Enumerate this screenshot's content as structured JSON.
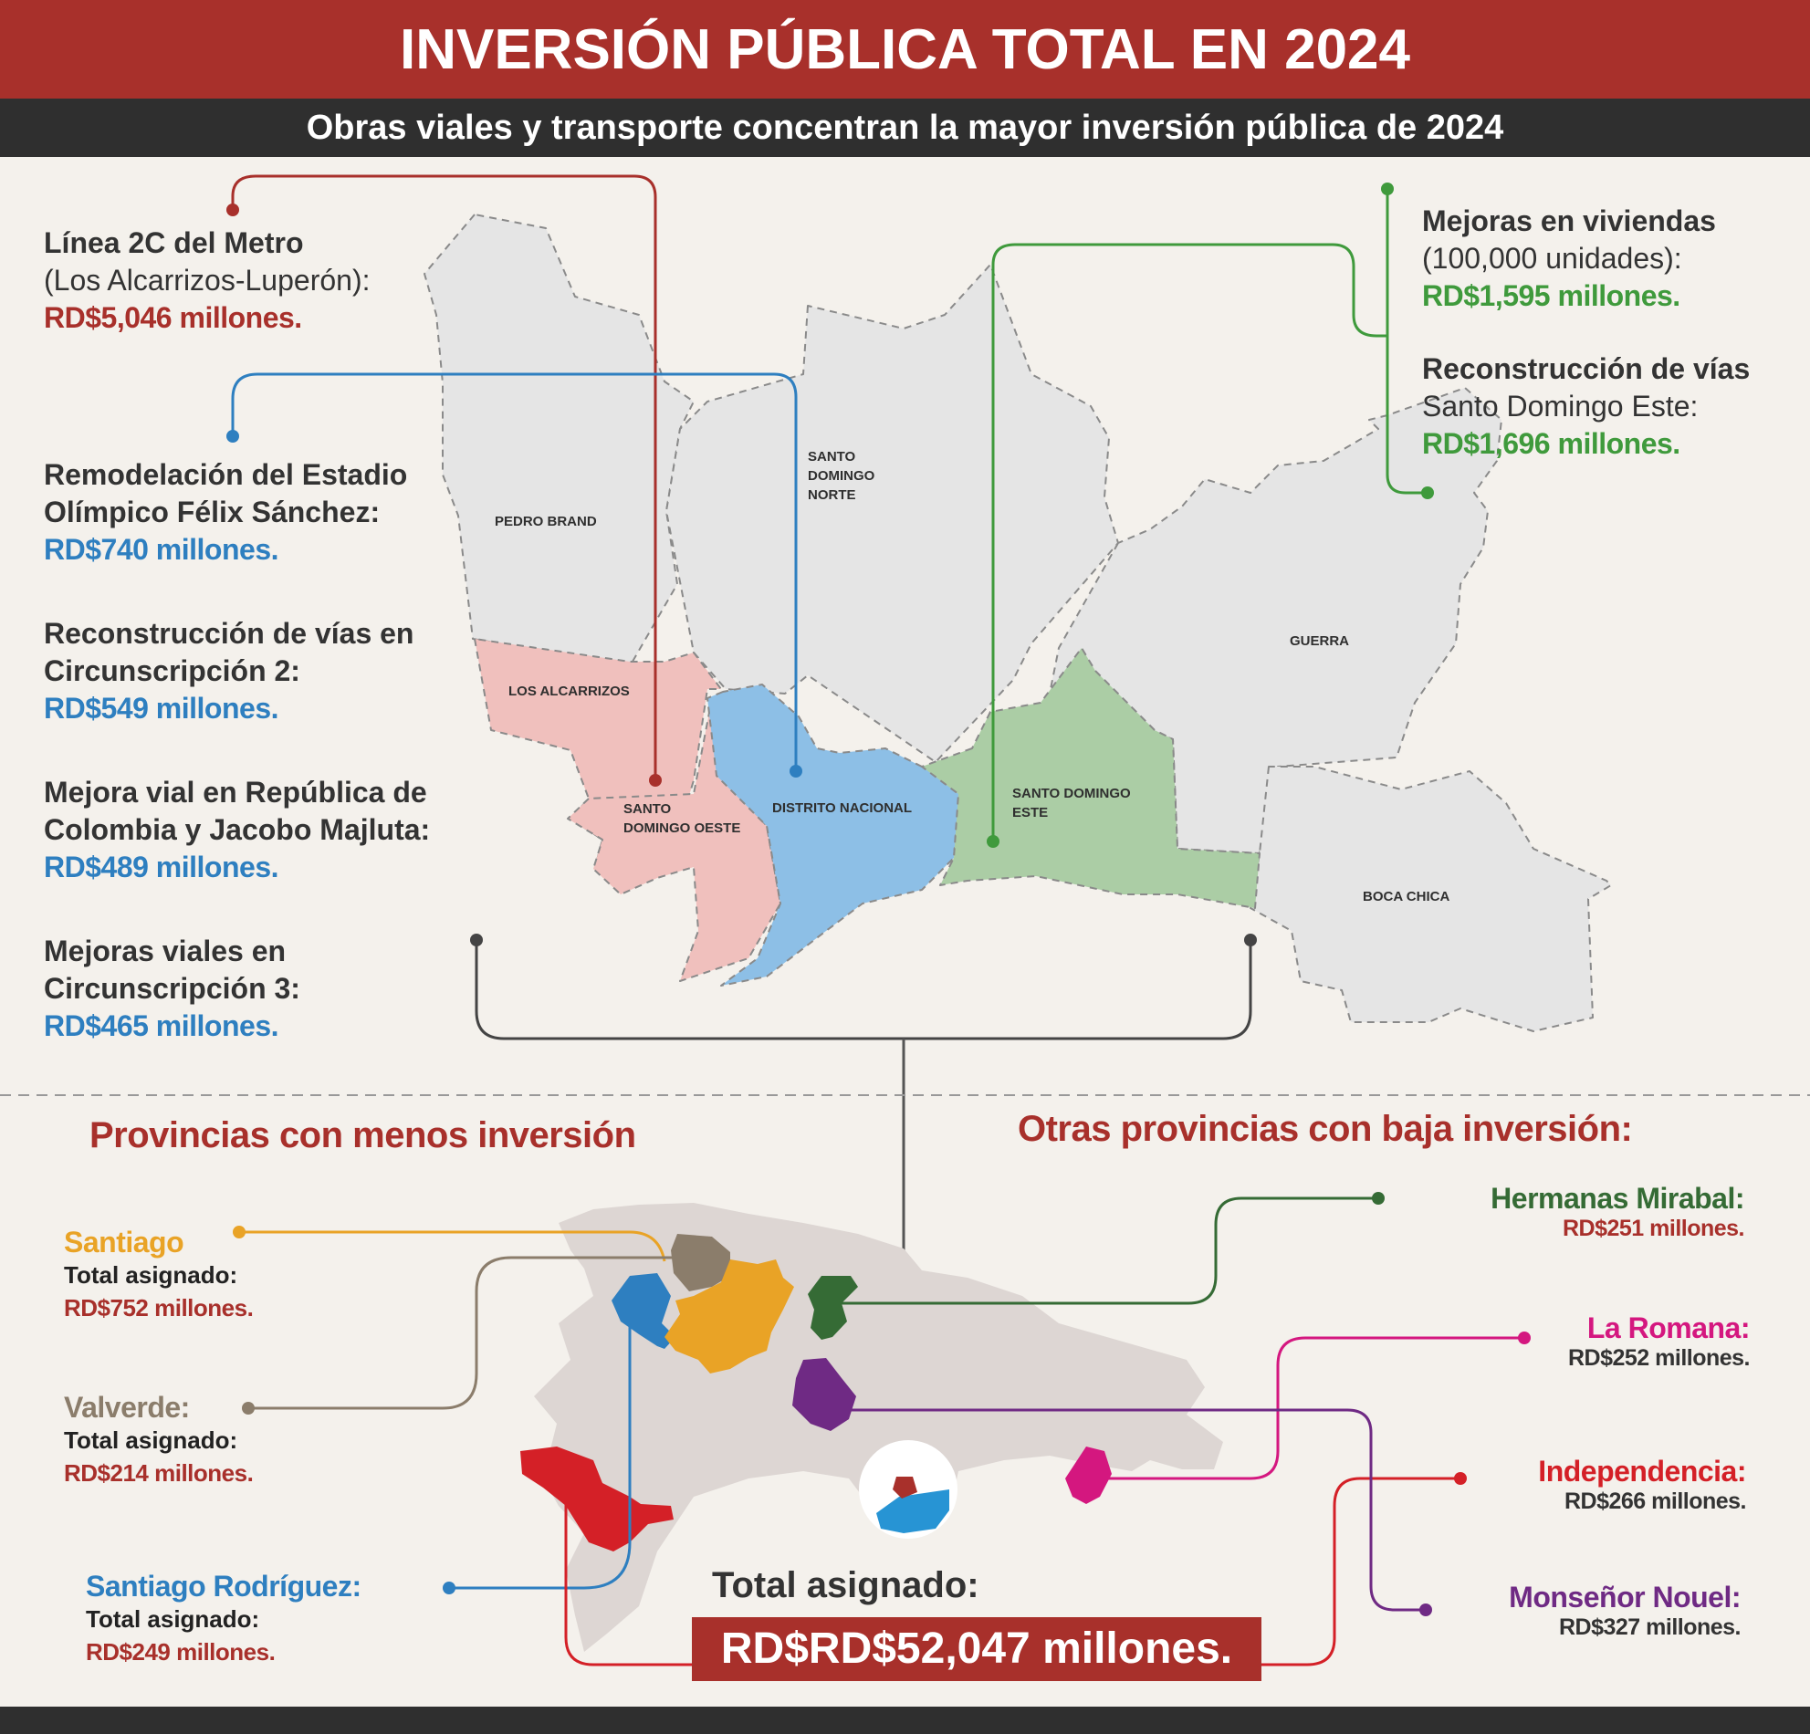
{
  "header": {
    "title": "INVERSIÓN PÚBLICA TOTAL EN 2024",
    "subtitle": "Obras viales y transporte concentran la mayor inversión pública de 2024"
  },
  "map_labels": {
    "pedro_brand": "PEDRO BRAND",
    "sdn_1": "SANTO",
    "sdn_2": "DOMINGO",
    "sdn_3": "NORTE",
    "los_alcarrizos": "LOS ALCARRIZOS",
    "sdo_1": "SANTO",
    "sdo_2": "DOMINGO OESTE",
    "distrito_nacional": "DISTRITO NACIONAL",
    "sde_1": "SANTO DOMINGO",
    "sde_2": "ESTE",
    "guerra": "GUERRA",
    "boca_chica": "BOCA CHICA"
  },
  "projects_left": [
    {
      "title": "Línea 2C del Metro",
      "note": "(Los Alcarrizos-Luperón):",
      "amount": "RD$5,046 millones."
    },
    {
      "title": "Remodelación del Estadio",
      "title2": "Olímpico Félix Sánchez:",
      "amount": "RD$740 millones."
    },
    {
      "title": "Reconstrucción de vías en",
      "title2": "Circunscripción 2:",
      "amount": "RD$549 millones."
    },
    {
      "title": "Mejora vial en República de",
      "title2": "Colombia y Jacobo Majluta:",
      "amount": "RD$489 millones."
    },
    {
      "title": "Mejoras viales en",
      "title2": "Circunscripción 3:",
      "amount": "RD$465 millones."
    }
  ],
  "projects_right": [
    {
      "title": "Mejoras en viviendas",
      "note": "(100,000 unidades):",
      "amount": "RD$1,595 millones."
    },
    {
      "title": "Reconstrucción de vías",
      "note": "Santo Domingo Este:",
      "amount": "RD$1,696 millones."
    }
  ],
  "section_left": "Provincias con menos inversión",
  "section_right": "Otras provincias con baja inversión:",
  "provinces_left": [
    {
      "name": "Santiago",
      "label": "Total asignado:",
      "amount": "RD$752 millones.",
      "color": "#e9a326"
    },
    {
      "name": "Valverde:",
      "label": "Total asignado:",
      "amount": "RD$214 millones.",
      "color": "#8b7d6b"
    },
    {
      "name": "Santiago Rodríguez:",
      "label": "Total asignado:",
      "amount": "RD$249 millones.",
      "color": "#2e7fc0"
    }
  ],
  "provinces_right": [
    {
      "name": "Hermanas Mirabal:",
      "amount": "RD$251 millones.",
      "color": "#356b35",
      "amount_color": "#a8302b"
    },
    {
      "name": "La Romana:",
      "amount": "RD$252 millones.",
      "color": "#d4177f",
      "amount_color": "#333333"
    },
    {
      "name": "Independencia:",
      "amount": "RD$266 millones.",
      "color": "#d42027",
      "amount_color": "#333333"
    },
    {
      "name": "Monseñor Nouel:",
      "amount": "RD$327 millones.",
      "color": "#6f2a84",
      "amount_color": "#333333"
    }
  ],
  "total": {
    "label": "Total asignado:",
    "amount": "RD$RD$52,047 millones."
  }
}
